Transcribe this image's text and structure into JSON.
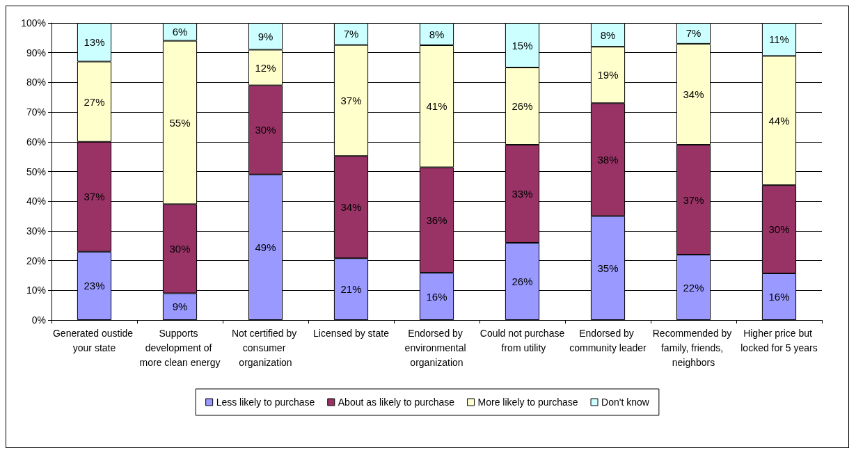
{
  "chart_data": {
    "type": "bar",
    "stacked": true,
    "categories": [
      "Generated oustide your state",
      "Supports development of more clean energy",
      "Not certified by consumer organization",
      "Licensed by state",
      "Endorsed by environmental organization",
      "Could not purchase from utility",
      "Endorsed by community leader",
      "Recommended by family, friends, neighbors",
      "Higher price but locked for 5 years"
    ],
    "series": [
      {
        "name": "Less likely to purchase",
        "color": "#9999ff",
        "values": [
          23,
          9,
          49,
          20.8,
          15.9,
          26,
          35,
          22,
          15.7
        ],
        "value_labels": [
          "23%",
          "9%",
          "49%",
          "21%",
          "16%",
          "26%",
          "35%",
          "22%",
          "16%"
        ]
      },
      {
        "name": "About as likely to purchase",
        "color": "#993366",
        "values": [
          37,
          30,
          30,
          34.4,
          35.5,
          33,
          38,
          37,
          29.7
        ],
        "value_labels": [
          "37%",
          "30%",
          "30%",
          "34%",
          "36%",
          "33%",
          "38%",
          "37%",
          "30%"
        ]
      },
      {
        "name": "More likely to purchase",
        "color": "#ffffcc",
        "values": [
          27,
          55,
          12,
          37.4,
          41.1,
          26,
          19,
          34,
          43.5
        ],
        "value_labels": [
          "27%",
          "55%",
          "12%",
          "37%",
          "41%",
          "26%",
          "19%",
          "34%",
          "44%"
        ]
      },
      {
        "name": "Don't know",
        "color": "#ccffff",
        "values": [
          13,
          6,
          9,
          7.4,
          7.5,
          15,
          8,
          7,
          11.1
        ],
        "value_labels": [
          "13%",
          "6%",
          "9%",
          "7%",
          "8%",
          "15%",
          "8%",
          "7%",
          "11%"
        ]
      }
    ],
    "ylim": [
      0,
      100
    ],
    "yticks": [
      {
        "value": 0,
        "label": "0%"
      },
      {
        "value": 10,
        "label": "10%"
      },
      {
        "value": 20,
        "label": "20%"
      },
      {
        "value": 30,
        "label": "30%"
      },
      {
        "value": 40,
        "label": "40%"
      },
      {
        "value": 50,
        "label": "50%"
      },
      {
        "value": 60,
        "label": "60%"
      },
      {
        "value": 70,
        "label": "70%"
      },
      {
        "value": 80,
        "label": "80%"
      },
      {
        "value": 90,
        "label": "90%"
      },
      {
        "value": 100,
        "label": "100%"
      }
    ],
    "grid": "y",
    "legend": "bottom"
  }
}
